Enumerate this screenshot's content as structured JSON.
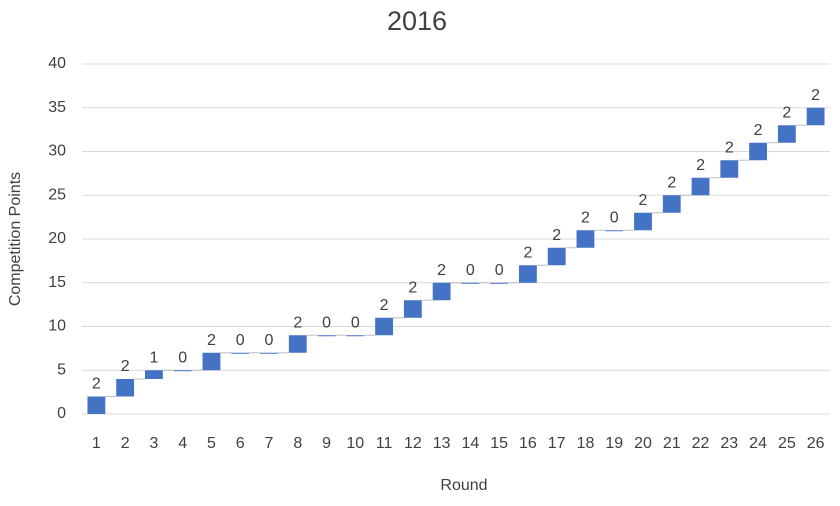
{
  "chart_data": {
    "type": "waterfall",
    "title": "2016",
    "x_label": "Round",
    "y_label": "Competition Points",
    "categories": [
      "1",
      "2",
      "3",
      "4",
      "5",
      "6",
      "7",
      "8",
      "9",
      "10",
      "11",
      "12",
      "13",
      "14",
      "15",
      "16",
      "17",
      "18",
      "19",
      "20",
      "21",
      "22",
      "23",
      "24",
      "25",
      "26"
    ],
    "values": [
      2,
      2,
      1,
      0,
      2,
      0,
      0,
      2,
      0,
      0,
      2,
      2,
      2,
      0,
      0,
      2,
      2,
      2,
      0,
      2,
      2,
      2,
      2,
      2,
      2,
      2
    ],
    "color": "#4472c4",
    "ylim": [
      0,
      40
    ],
    "yticks": [
      0,
      5,
      10,
      15,
      20,
      25,
      30,
      35,
      40
    ],
    "grid": true
  }
}
